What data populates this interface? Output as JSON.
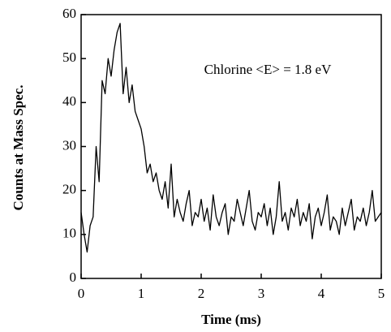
{
  "chart_data": {
    "type": "line",
    "xlabel": "Time (ms)",
    "ylabel": "Counts at Mass Spec.",
    "annotation": "Chlorine <E> = 1.8 eV",
    "xlim": [
      0,
      5
    ],
    "ylim": [
      0,
      60
    ],
    "xticks": [
      0,
      1,
      2,
      3,
      4,
      5
    ],
    "yticks": [
      0,
      10,
      20,
      30,
      40,
      50,
      60
    ],
    "color": "#000000",
    "x": [
      0,
      0.05,
      0.1,
      0.15,
      0.2,
      0.25,
      0.3,
      0.35,
      0.4,
      0.45,
      0.5,
      0.55,
      0.6,
      0.65,
      0.7,
      0.75,
      0.8,
      0.85,
      0.9,
      0.95,
      1,
      1.05,
      1.1,
      1.15,
      1.2,
      1.25,
      1.3,
      1.35,
      1.4,
      1.45,
      1.5,
      1.55,
      1.6,
      1.65,
      1.7,
      1.75,
      1.8,
      1.85,
      1.9,
      1.95,
      2,
      2.05,
      2.1,
      2.15,
      2.2,
      2.25,
      2.3,
      2.35,
      2.4,
      2.45,
      2.5,
      2.55,
      2.6,
      2.65,
      2.7,
      2.75,
      2.8,
      2.85,
      2.9,
      2.95,
      3,
      3.05,
      3.1,
      3.15,
      3.2,
      3.25,
      3.3,
      3.35,
      3.4,
      3.45,
      3.5,
      3.55,
      3.6,
      3.65,
      3.7,
      3.75,
      3.8,
      3.85,
      3.9,
      3.95,
      4,
      4.05,
      4.1,
      4.15,
      4.2,
      4.25,
      4.3,
      4.35,
      4.4,
      4.45,
      4.5,
      4.55,
      4.6,
      4.65,
      4.7,
      4.75,
      4.8,
      4.85,
      4.9,
      4.95,
      5
    ],
    "values": [
      15,
      10,
      6,
      12,
      14,
      30,
      22,
      45,
      42,
      50,
      46,
      52,
      56,
      58,
      42,
      48,
      40,
      44,
      38,
      36,
      34,
      30,
      24,
      26,
      22,
      24,
      20,
      18,
      22,
      16,
      26,
      14,
      18,
      15,
      13,
      17,
      20,
      12,
      15,
      14,
      18,
      13,
      16,
      11,
      19,
      14,
      12,
      15,
      17,
      10,
      14,
      13,
      18,
      15,
      12,
      16,
      20,
      13,
      11,
      15,
      14,
      17,
      12,
      16,
      10,
      14,
      22,
      13,
      15,
      11,
      16,
      14,
      18,
      12,
      15,
      13,
      17,
      9,
      14,
      16,
      12,
      15,
      19,
      11,
      14,
      13,
      10,
      16,
      12,
      15,
      18,
      11,
      14,
      13,
      16,
      12,
      15,
      20,
      13,
      14,
      15
    ]
  }
}
